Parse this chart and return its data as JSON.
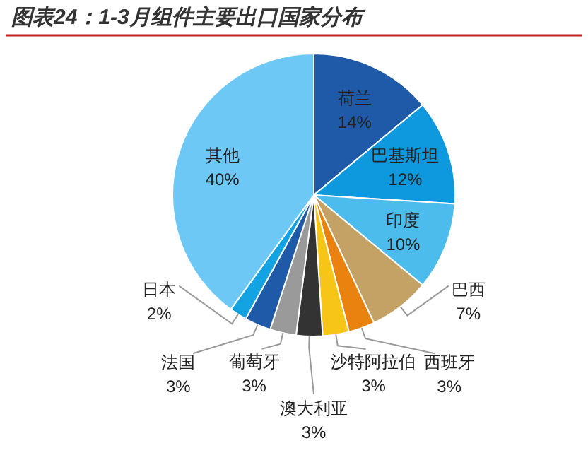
{
  "chart_data": {
    "type": "pie",
    "title": "图表24：1-3月组件主要出口国家分布",
    "categories": [
      "荷兰",
      "巴基斯坦",
      "印度",
      "巴西",
      "西班牙",
      "沙特阿拉伯",
      "澳大利亚",
      "葡萄牙",
      "法国",
      "日本",
      "其他"
    ],
    "values": [
      14,
      12,
      10,
      7,
      3,
      3,
      3,
      3,
      3,
      2,
      40
    ],
    "colors": [
      "#1f5aa8",
      "#0e98de",
      "#4bbcec",
      "#c4a265",
      "#e9820f",
      "#f6c518",
      "#333333",
      "#9a9a9a",
      "#1f5aa8",
      "#13a2e2",
      "#6ec8f5"
    ],
    "value_labels": [
      "14%",
      "12%",
      "10%",
      "7%",
      "3%",
      "3%",
      "3%",
      "3%",
      "3%",
      "2%",
      "40%"
    ]
  }
}
